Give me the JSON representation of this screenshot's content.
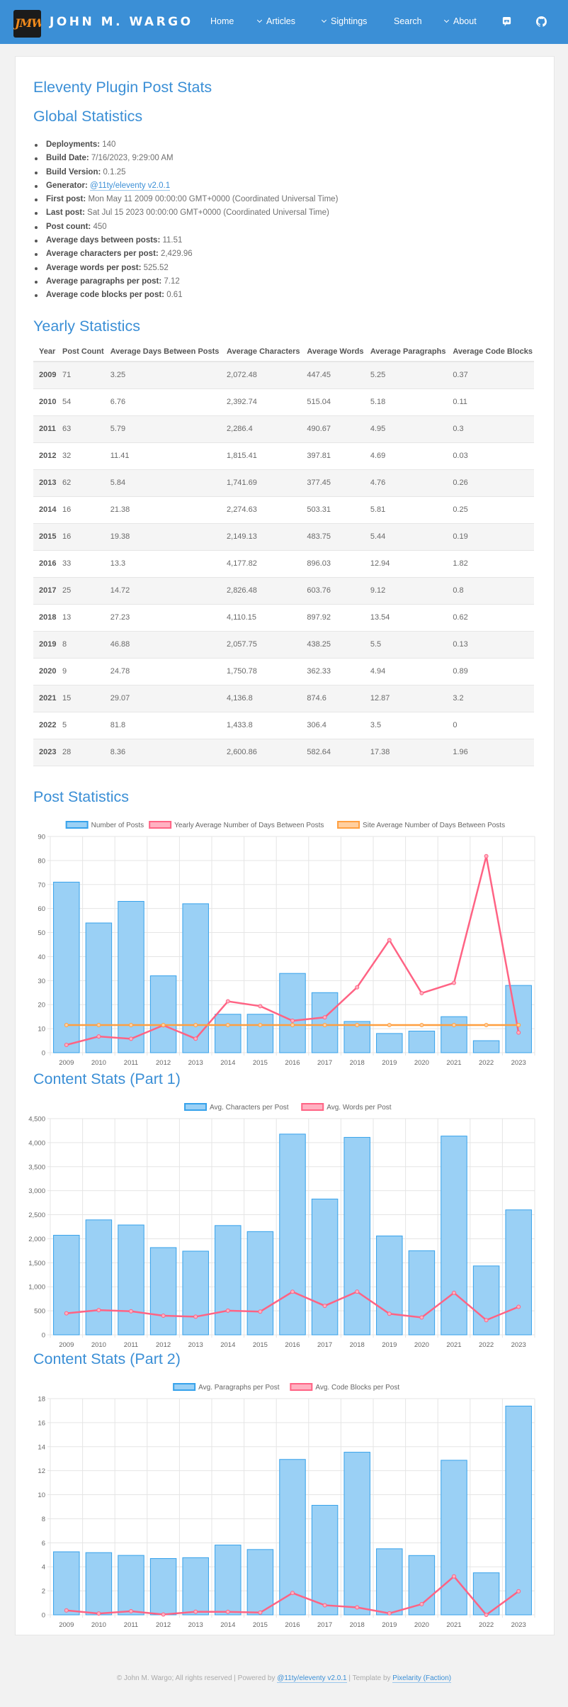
{
  "header": {
    "site_title": "JOHN M. WARGO",
    "logo_text": "JMW",
    "nav": {
      "home": "Home",
      "articles": "Articles",
      "sightings": "Sightings",
      "search": "Search",
      "about": "About"
    }
  },
  "page": {
    "title": "Eleventy Plugin Post Stats",
    "global_heading": "Global Statistics",
    "yearly_heading": "Yearly Statistics",
    "post_heading": "Post Statistics",
    "content1_heading": "Content Stats (Part 1)",
    "content2_heading": "Content Stats (Part 2)"
  },
  "global": [
    {
      "label": "Deployments:",
      "value": "140"
    },
    {
      "label": "Build Date:",
      "value": "7/16/2023, 9:29:00 AM"
    },
    {
      "label": "Build Version:",
      "value": "0.1.25"
    },
    {
      "label": "Generator:",
      "value": "@11ty/eleventy v2.0.1",
      "link": true
    },
    {
      "label": "First post:",
      "value": "Mon May 11 2009 00:00:00 GMT+0000 (Coordinated Universal Time)"
    },
    {
      "label": "Last post:",
      "value": "Sat Jul 15 2023 00:00:00 GMT+0000 (Coordinated Universal Time)"
    },
    {
      "label": "Post count:",
      "value": "450"
    },
    {
      "label": "Average days between posts:",
      "value": "11.51"
    },
    {
      "label": "Average characters per post:",
      "value": "2,429.96"
    },
    {
      "label": "Average words per post:",
      "value": "525.52"
    },
    {
      "label": "Average paragraphs per post:",
      "value": "7.12"
    },
    {
      "label": "Average code blocks per post:",
      "value": "0.61"
    }
  ],
  "table": {
    "headers": [
      "Year",
      "Post Count",
      "Average Days Between Posts",
      "Average Characters",
      "Average Words",
      "Average Paragraphs",
      "Average Code Blocks"
    ],
    "rows": [
      [
        "2009",
        "71",
        "3.25",
        "2,072.48",
        "447.45",
        "5.25",
        "0.37"
      ],
      [
        "2010",
        "54",
        "6.76",
        "2,392.74",
        "515.04",
        "5.18",
        "0.11"
      ],
      [
        "2011",
        "63",
        "5.79",
        "2,286.4",
        "490.67",
        "4.95",
        "0.3"
      ],
      [
        "2012",
        "32",
        "11.41",
        "1,815.41",
        "397.81",
        "4.69",
        "0.03"
      ],
      [
        "2013",
        "62",
        "5.84",
        "1,741.69",
        "377.45",
        "4.76",
        "0.26"
      ],
      [
        "2014",
        "16",
        "21.38",
        "2,274.63",
        "503.31",
        "5.81",
        "0.25"
      ],
      [
        "2015",
        "16",
        "19.38",
        "2,149.13",
        "483.75",
        "5.44",
        "0.19"
      ],
      [
        "2016",
        "33",
        "13.3",
        "4,177.82",
        "896.03",
        "12.94",
        "1.82"
      ],
      [
        "2017",
        "25",
        "14.72",
        "2,826.48",
        "603.76",
        "9.12",
        "0.8"
      ],
      [
        "2018",
        "13",
        "27.23",
        "4,110.15",
        "897.92",
        "13.54",
        "0.62"
      ],
      [
        "2019",
        "8",
        "46.88",
        "2,057.75",
        "438.25",
        "5.5",
        "0.13"
      ],
      [
        "2020",
        "9",
        "24.78",
        "1,750.78",
        "362.33",
        "4.94",
        "0.89"
      ],
      [
        "2021",
        "15",
        "29.07",
        "4,136.8",
        "874.6",
        "12.87",
        "3.2"
      ],
      [
        "2022",
        "5",
        "81.8",
        "1,433.8",
        "306.4",
        "3.5",
        "0"
      ],
      [
        "2023",
        "28",
        "8.36",
        "2,600.86",
        "582.64",
        "17.38",
        "1.96"
      ]
    ]
  },
  "colors": {
    "accent": "#3b8fd6",
    "bar_fill": "#9ad0f5",
    "bar_stroke": "#36a2eb",
    "line_pink": "#ff6384",
    "line_orange": "#ff9f40"
  },
  "chart_data": [
    {
      "type": "bar",
      "categories": [
        "2009",
        "2010",
        "2011",
        "2012",
        "2013",
        "2014",
        "2015",
        "2016",
        "2017",
        "2018",
        "2019",
        "2020",
        "2021",
        "2022",
        "2023"
      ],
      "legend": "top",
      "grid": true,
      "ylim": [
        0,
        90
      ],
      "ytick_step": 10,
      "bar": {
        "name": "Number of Posts",
        "values": [
          71,
          54,
          63,
          32,
          62,
          16,
          16,
          33,
          25,
          13,
          8,
          9,
          15,
          5,
          28
        ]
      },
      "lines": [
        {
          "name": "Yearly Average Number of Days Between Posts",
          "color": "#ff6384",
          "values": [
            3.25,
            6.76,
            5.79,
            11.41,
            5.84,
            21.38,
            19.38,
            13.3,
            14.72,
            27.23,
            46.88,
            24.78,
            29.07,
            81.8,
            8.36
          ]
        },
        {
          "name": "Site Average Number of Days Between Posts",
          "color": "#ff9f40",
          "values": [
            11.51,
            11.51,
            11.51,
            11.51,
            11.51,
            11.51,
            11.51,
            11.51,
            11.51,
            11.51,
            11.51,
            11.51,
            11.51,
            11.51,
            11.51
          ]
        }
      ]
    },
    {
      "type": "bar",
      "categories": [
        "2009",
        "2010",
        "2011",
        "2012",
        "2013",
        "2014",
        "2015",
        "2016",
        "2017",
        "2018",
        "2019",
        "2020",
        "2021",
        "2022",
        "2023"
      ],
      "legend": "top",
      "grid": true,
      "ylim": [
        0,
        4500
      ],
      "ytick_step": 500,
      "bar": {
        "name": "Avg. Characters per Post",
        "values": [
          2072.48,
          2392.74,
          2286.4,
          1815.41,
          1741.69,
          2274.63,
          2149.13,
          4177.82,
          2826.48,
          4110.15,
          2057.75,
          1750.78,
          4136.8,
          1433.8,
          2600.86
        ]
      },
      "lines": [
        {
          "name": "Avg. Words per Post",
          "color": "#ff6384",
          "values": [
            447.45,
            515.04,
            490.67,
            397.81,
            377.45,
            503.31,
            483.75,
            896.03,
            603.76,
            897.92,
            438.25,
            362.33,
            874.6,
            306.4,
            582.64
          ]
        }
      ]
    },
    {
      "type": "bar",
      "categories": [
        "2009",
        "2010",
        "2011",
        "2012",
        "2013",
        "2014",
        "2015",
        "2016",
        "2017",
        "2018",
        "2019",
        "2020",
        "2021",
        "2022",
        "2023"
      ],
      "legend": "top",
      "grid": true,
      "ylim": [
        0,
        18
      ],
      "ytick_step": 2,
      "bar": {
        "name": "Avg. Paragraphs per Post",
        "values": [
          5.25,
          5.18,
          4.95,
          4.69,
          4.76,
          5.81,
          5.44,
          12.94,
          9.12,
          13.54,
          5.5,
          4.94,
          12.87,
          3.5,
          17.38
        ]
      },
      "lines": [
        {
          "name": "Avg. Code Blocks per Post",
          "color": "#ff6384",
          "values": [
            0.37,
            0.11,
            0.3,
            0.03,
            0.26,
            0.25,
            0.19,
            1.82,
            0.8,
            0.62,
            0.13,
            0.89,
            3.2,
            0,
            1.96
          ]
        }
      ]
    }
  ],
  "footer": {
    "copyright": "© John M. Wargo; All rights reserved | Powered by ",
    "eleventy": "@11ty/eleventy v2.0.1",
    "template": " | Template by ",
    "pixelarity": "Pixelarity (Faction)"
  }
}
